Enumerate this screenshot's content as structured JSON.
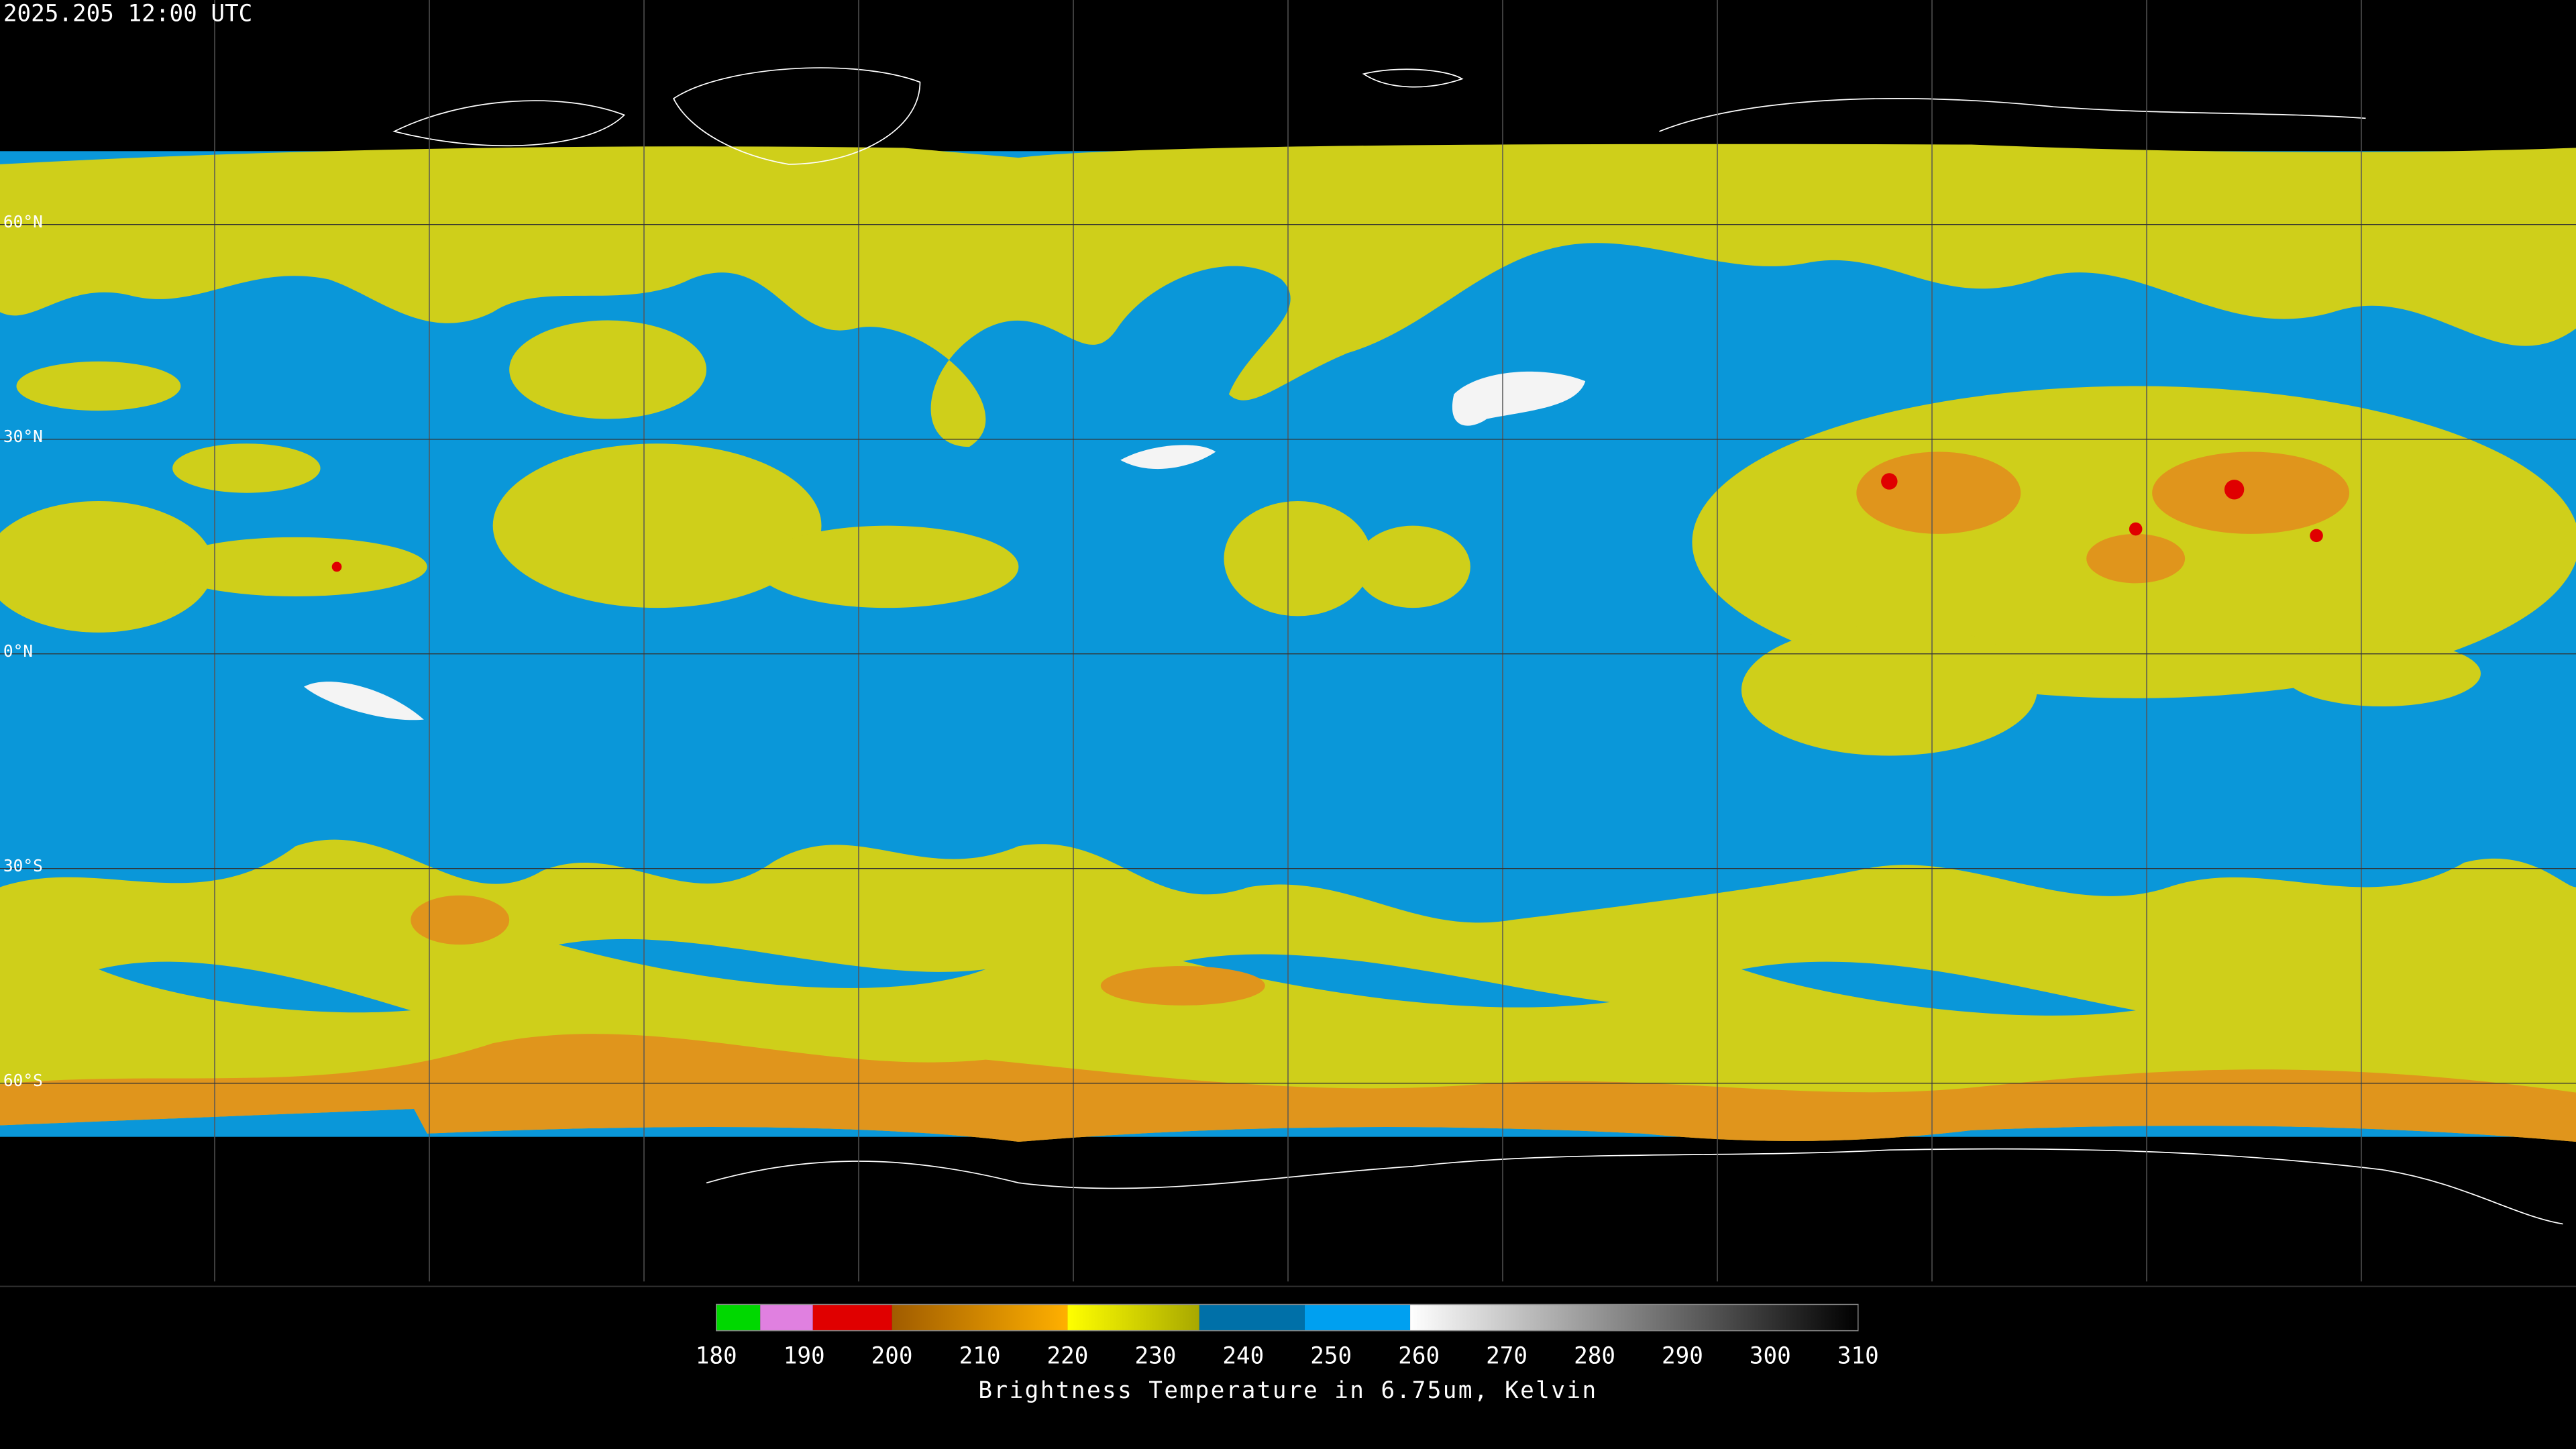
{
  "header": {
    "timestamp": "2025.205 12:00 UTC"
  },
  "map": {
    "ylim": [
      90,
      -90
    ],
    "latitude_lines": [
      {
        "value": 60,
        "label": "60°N"
      },
      {
        "value": 30,
        "label": "30°N"
      },
      {
        "value": 0,
        "label": "0°N"
      },
      {
        "value": -30,
        "label": "30°S"
      },
      {
        "value": -60,
        "label": "60°S"
      }
    ]
  },
  "colorbar": {
    "label": "Brightness Temperature in 6.75um, Kelvin",
    "range": [
      180,
      310
    ],
    "ticks": [
      180,
      190,
      200,
      210,
      220,
      230,
      240,
      250,
      260,
      270,
      280,
      290,
      300,
      310
    ],
    "segments": [
      {
        "from": 180,
        "to": 185,
        "colors": [
          "#00d800",
          "#00d800"
        ]
      },
      {
        "from": 185,
        "to": 191,
        "colors": [
          "#e080e0",
          "#e080e0"
        ]
      },
      {
        "from": 191,
        "to": 200,
        "colors": [
          "#e00000",
          "#e00000"
        ]
      },
      {
        "from": 200,
        "to": 220,
        "colors": [
          "#a05c00",
          "#ffb000"
        ]
      },
      {
        "from": 220,
        "to": 235,
        "colors": [
          "#ffff00",
          "#a8a800"
        ]
      },
      {
        "from": 235,
        "to": 247,
        "colors": [
          "#0070a8",
          "#0070a8"
        ]
      },
      {
        "from": 247,
        "to": 259,
        "colors": [
          "#00a0f0",
          "#00a0f0"
        ]
      },
      {
        "from": 259,
        "to": 310,
        "colors": [
          "#ffffff",
          "#000000"
        ]
      }
    ]
  }
}
